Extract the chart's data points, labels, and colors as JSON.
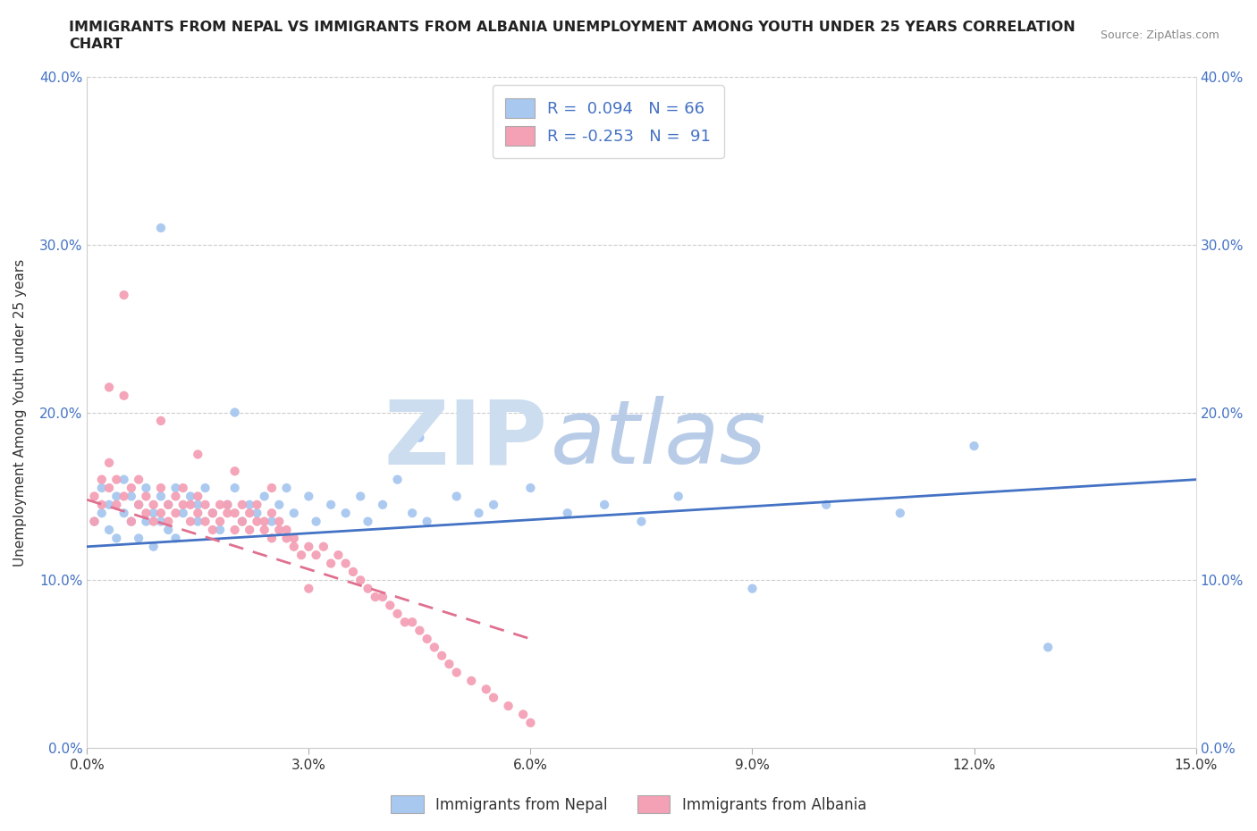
{
  "title_line1": "IMMIGRANTS FROM NEPAL VS IMMIGRANTS FROM ALBANIA UNEMPLOYMENT AMONG YOUTH UNDER 25 YEARS CORRELATION",
  "title_line2": "CHART",
  "source": "Source: ZipAtlas.com",
  "ylabel": "Unemployment Among Youth under 25 years",
  "xlim": [
    0.0,
    0.15
  ],
  "ylim": [
    0.0,
    0.4
  ],
  "xticks": [
    0.0,
    0.03,
    0.06,
    0.09,
    0.12,
    0.15
  ],
  "yticks": [
    0.0,
    0.1,
    0.2,
    0.3,
    0.4
  ],
  "nepal_R": 0.094,
  "nepal_N": 66,
  "albania_R": -0.253,
  "albania_N": 91,
  "nepal_color": "#a8c8f0",
  "albania_color": "#f4a0b5",
  "nepal_line_color": "#4472c4",
  "albania_line_color": "#e07090",
  "background_color": "#ffffff",
  "watermark_zip_color": "#ccddf0",
  "watermark_atlas_color": "#b8cce8",
  "nepal_scatter_x": [
    0.001,
    0.002,
    0.002,
    0.003,
    0.003,
    0.004,
    0.004,
    0.005,
    0.005,
    0.006,
    0.006,
    0.007,
    0.007,
    0.008,
    0.008,
    0.009,
    0.009,
    0.01,
    0.01,
    0.011,
    0.011,
    0.012,
    0.012,
    0.013,
    0.014,
    0.015,
    0.015,
    0.016,
    0.017,
    0.018,
    0.019,
    0.02,
    0.021,
    0.022,
    0.023,
    0.024,
    0.025,
    0.026,
    0.027,
    0.028,
    0.03,
    0.031,
    0.033,
    0.035,
    0.037,
    0.038,
    0.04,
    0.042,
    0.044,
    0.046,
    0.05,
    0.053,
    0.055,
    0.06,
    0.065,
    0.07,
    0.075,
    0.08,
    0.09,
    0.1,
    0.11,
    0.12,
    0.13,
    0.01,
    0.02,
    0.045
  ],
  "nepal_scatter_y": [
    0.135,
    0.14,
    0.155,
    0.145,
    0.13,
    0.15,
    0.125,
    0.14,
    0.16,
    0.135,
    0.15,
    0.125,
    0.145,
    0.135,
    0.155,
    0.14,
    0.12,
    0.15,
    0.135,
    0.145,
    0.13,
    0.155,
    0.125,
    0.14,
    0.15,
    0.135,
    0.145,
    0.155,
    0.14,
    0.13,
    0.145,
    0.155,
    0.135,
    0.145,
    0.14,
    0.15,
    0.135,
    0.145,
    0.155,
    0.14,
    0.15,
    0.135,
    0.145,
    0.14,
    0.15,
    0.135,
    0.145,
    0.16,
    0.14,
    0.135,
    0.15,
    0.14,
    0.145,
    0.155,
    0.14,
    0.145,
    0.135,
    0.15,
    0.095,
    0.145,
    0.14,
    0.18,
    0.06,
    0.31,
    0.2,
    0.185
  ],
  "albania_scatter_x": [
    0.001,
    0.001,
    0.002,
    0.002,
    0.003,
    0.003,
    0.004,
    0.004,
    0.005,
    0.005,
    0.006,
    0.006,
    0.007,
    0.007,
    0.008,
    0.008,
    0.009,
    0.009,
    0.01,
    0.01,
    0.011,
    0.011,
    0.012,
    0.012,
    0.013,
    0.013,
    0.014,
    0.014,
    0.015,
    0.015,
    0.016,
    0.016,
    0.017,
    0.017,
    0.018,
    0.018,
    0.019,
    0.019,
    0.02,
    0.02,
    0.021,
    0.021,
    0.022,
    0.022,
    0.023,
    0.023,
    0.024,
    0.024,
    0.025,
    0.025,
    0.026,
    0.026,
    0.027,
    0.027,
    0.028,
    0.028,
    0.029,
    0.03,
    0.031,
    0.032,
    0.033,
    0.034,
    0.035,
    0.036,
    0.037,
    0.038,
    0.039,
    0.04,
    0.041,
    0.042,
    0.043,
    0.044,
    0.045,
    0.046,
    0.047,
    0.048,
    0.049,
    0.05,
    0.052,
    0.054,
    0.055,
    0.057,
    0.059,
    0.06,
    0.003,
    0.005,
    0.01,
    0.015,
    0.02,
    0.025,
    0.03
  ],
  "albania_scatter_y": [
    0.15,
    0.135,
    0.16,
    0.145,
    0.155,
    0.17,
    0.145,
    0.16,
    0.15,
    0.27,
    0.135,
    0.155,
    0.145,
    0.16,
    0.14,
    0.15,
    0.135,
    0.145,
    0.155,
    0.14,
    0.145,
    0.135,
    0.15,
    0.14,
    0.145,
    0.155,
    0.135,
    0.145,
    0.14,
    0.15,
    0.135,
    0.145,
    0.13,
    0.14,
    0.145,
    0.135,
    0.14,
    0.145,
    0.13,
    0.14,
    0.135,
    0.145,
    0.13,
    0.14,
    0.135,
    0.145,
    0.13,
    0.135,
    0.14,
    0.125,
    0.135,
    0.13,
    0.125,
    0.13,
    0.12,
    0.125,
    0.115,
    0.12,
    0.115,
    0.12,
    0.11,
    0.115,
    0.11,
    0.105,
    0.1,
    0.095,
    0.09,
    0.09,
    0.085,
    0.08,
    0.075,
    0.075,
    0.07,
    0.065,
    0.06,
    0.055,
    0.05,
    0.045,
    0.04,
    0.035,
    0.03,
    0.025,
    0.02,
    0.015,
    0.215,
    0.21,
    0.195,
    0.175,
    0.165,
    0.155,
    0.095
  ],
  "nepal_trend_x": [
    0.0,
    0.15
  ],
  "nepal_trend_y": [
    0.12,
    0.16
  ],
  "albania_trend_x": [
    0.0,
    0.06
  ],
  "albania_trend_y": [
    0.148,
    0.065
  ]
}
